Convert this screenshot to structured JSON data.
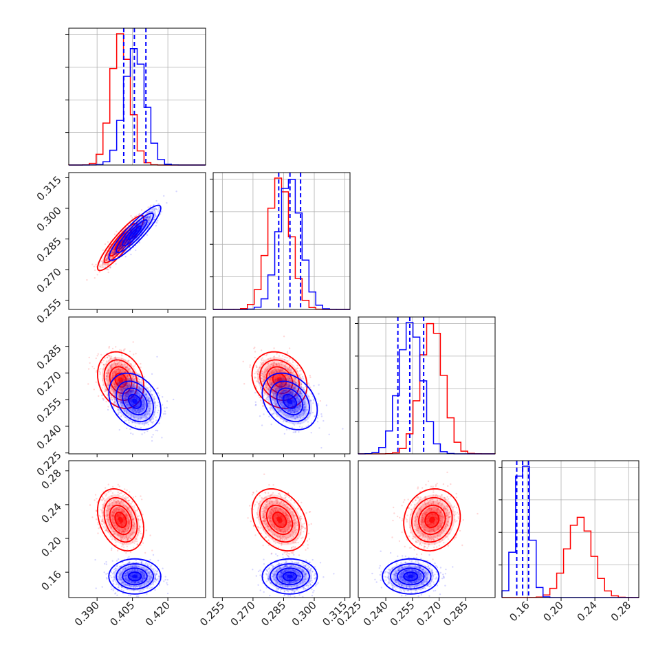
{
  "colors": {
    "red": "#ff0000",
    "blue": "#0000ff",
    "grid": "#b0b0b0",
    "axes": "#000000"
  },
  "chart_data": {
    "type": "corner",
    "grid": true,
    "parameters": [
      {
        "range": [
          0.378,
          0.436
        ],
        "ticks": [
          0.39,
          0.405,
          0.42
        ],
        "tick_labels": [
          "0.390",
          "0.405",
          "0.420"
        ]
      },
      {
        "range": [
          0.2505,
          0.3175
        ],
        "ticks": [
          0.255,
          0.27,
          0.285,
          0.3,
          0.315
        ],
        "tick_labels": [
          "0.255",
          "0.270",
          "0.285",
          "0.300",
          "0.315"
        ]
      },
      {
        "range": [
          0.2245,
          0.3015
        ],
        "ticks": [
          0.225,
          0.24,
          0.255,
          0.27,
          0.285
        ],
        "tick_labels": [
          "0.225",
          "0.240",
          "0.255",
          "0.270",
          "0.285"
        ]
      },
      {
        "range": [
          0.13,
          0.292
        ],
        "ticks": [
          0.16,
          0.2,
          0.24,
          0.28
        ],
        "tick_labels": [
          "0.16",
          "0.20",
          "0.24",
          "0.28"
        ]
      }
    ],
    "series": [
      {
        "color": "red",
        "mean": [
          0.4,
          0.283,
          0.266,
          0.222
        ],
        "std": [
          0.004,
          0.0055,
          0.0065,
          0.015
        ],
        "quantiles": []
      },
      {
        "color": "blue",
        "mean": [
          0.406,
          0.288,
          0.254,
          0.155
        ],
        "std": [
          0.0045,
          0.0055,
          0.0065,
          0.0085
        ],
        "quantiles": [
          [
            0.4013,
            0.4058,
            0.4107
          ],
          [
            0.2826,
            0.2881,
            0.2933
          ],
          [
            0.2468,
            0.2535,
            0.2613
          ],
          [
            0.1475,
            0.1545,
            0.1615
          ]
        ]
      }
    ],
    "correlations": [
      {
        "pair": [
          0,
          1
        ],
        "red": 0.9,
        "blue": 0.9
      },
      {
        "pair": [
          0,
          2
        ],
        "red": -0.2,
        "blue": -0.3
      },
      {
        "pair": [
          0,
          3
        ],
        "red": -0.3,
        "blue": 0.0
      },
      {
        "pair": [
          1,
          2
        ],
        "red": -0.2,
        "blue": -0.3
      },
      {
        "pair": [
          1,
          3
        ],
        "red": -0.3,
        "blue": 0.0
      },
      {
        "pair": [
          2,
          3
        ],
        "red": 0.1,
        "blue": 0.0
      }
    ]
  }
}
